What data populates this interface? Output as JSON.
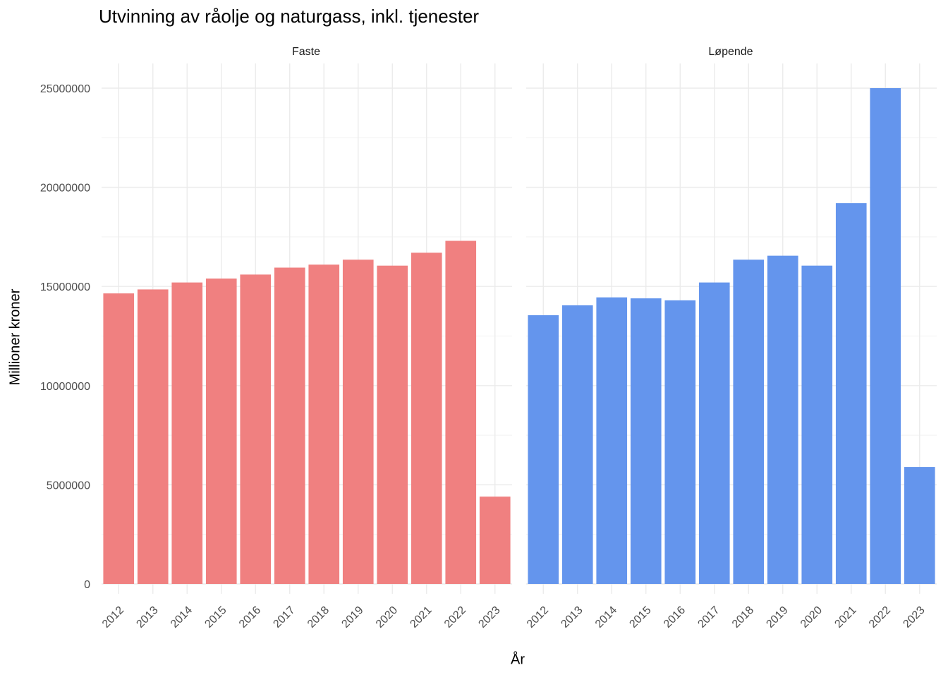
{
  "chart_data": {
    "type": "bar",
    "title": "Utvinning av råolje og naturgass, inkl. tjenester",
    "xlabel": "År",
    "ylabel": "Millioner kroner",
    "categories": [
      "2012",
      "2013",
      "2014",
      "2015",
      "2016",
      "2017",
      "2018",
      "2019",
      "2020",
      "2021",
      "2022",
      "2023"
    ],
    "ylim": [
      0,
      26000000
    ],
    "y_ticks": [
      0,
      5000000,
      10000000,
      15000000,
      20000000,
      25000000
    ],
    "y_tick_labels": [
      "0",
      "5000000",
      "10000000",
      "15000000",
      "20000000",
      "25000000"
    ],
    "grid": true,
    "facets": [
      {
        "label": "Faste",
        "color": "#F08080",
        "values": [
          14650000,
          14850000,
          15200000,
          15400000,
          15600000,
          15950000,
          16100000,
          16350000,
          16050000,
          16700000,
          17300000,
          4400000
        ]
      },
      {
        "label": "Løpende",
        "color": "#6495ED",
        "values": [
          13550000,
          14050000,
          14450000,
          14400000,
          14300000,
          15200000,
          16350000,
          16550000,
          16050000,
          19200000,
          25000000,
          5900000
        ]
      }
    ]
  }
}
